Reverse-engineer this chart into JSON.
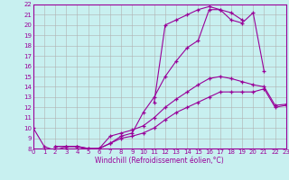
{
  "xlabel": "Windchill (Refroidissement éolien,°C)",
  "bg_color": "#c8f0f0",
  "line_color": "#990099",
  "grid_color": "#b0b0b0",
  "xmin": 0,
  "xmax": 23,
  "ymin": 8,
  "ymax": 22,
  "series": [
    {
      "x": [
        0,
        1,
        2,
        3,
        4,
        5,
        6,
        7,
        8,
        9,
        10,
        11,
        12,
        13,
        14,
        15,
        16,
        17,
        18,
        19,
        20,
        21
      ],
      "y": [
        10.0,
        8.2,
        7.8,
        8.2,
        8.2,
        7.9,
        8.0,
        8.5,
        9.2,
        9.5,
        11.5,
        13.0,
        15.0,
        16.5,
        17.8,
        18.5,
        21.5,
        21.5,
        20.5,
        20.2,
        21.2,
        15.5
      ]
    },
    {
      "x": [
        11,
        12,
        13,
        14,
        15,
        16,
        17,
        18,
        19
      ],
      "y": [
        12.5,
        20.0,
        20.5,
        21.0,
        21.5,
        21.8,
        21.5,
        21.2,
        20.5
      ]
    },
    {
      "x": [
        2,
        3,
        4,
        5,
        6,
        7,
        8,
        9,
        10,
        11,
        12,
        13,
        14,
        15,
        16,
        17,
        18,
        19,
        20,
        21,
        22,
        23
      ],
      "y": [
        8.2,
        8.2,
        8.2,
        8.0,
        8.0,
        9.2,
        9.5,
        9.8,
        10.2,
        11.0,
        12.0,
        12.8,
        13.5,
        14.2,
        14.8,
        15.0,
        14.8,
        14.5,
        14.2,
        14.0,
        12.2,
        12.3
      ]
    },
    {
      "x": [
        2,
        3,
        4,
        5,
        6,
        7,
        8,
        9,
        10,
        11,
        12,
        13,
        14,
        15,
        16,
        17,
        18,
        19,
        20,
        21,
        22,
        23
      ],
      "y": [
        8.2,
        8.2,
        8.2,
        8.0,
        8.0,
        8.5,
        9.0,
        9.2,
        9.5,
        10.0,
        10.8,
        11.5,
        12.0,
        12.5,
        13.0,
        13.5,
        13.5,
        13.5,
        13.5,
        13.8,
        12.0,
        12.2
      ]
    }
  ],
  "yticks": [
    8,
    9,
    10,
    11,
    12,
    13,
    14,
    15,
    16,
    17,
    18,
    19,
    20,
    21,
    22
  ],
  "xticks": [
    0,
    1,
    2,
    3,
    4,
    5,
    6,
    7,
    8,
    9,
    10,
    11,
    12,
    13,
    14,
    15,
    16,
    17,
    18,
    19,
    20,
    21,
    22,
    23
  ],
  "tick_fontsize": 5,
  "xlabel_fontsize": 5.5
}
